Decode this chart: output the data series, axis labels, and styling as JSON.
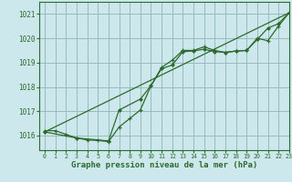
{
  "title": "Graphe pression niveau de la mer (hPa)",
  "background_color": "#cce8ec",
  "grid_color": "#99bbbb",
  "line_color": "#2d6a2d",
  "xlim": [
    -0.5,
    23
  ],
  "ylim": [
    1015.4,
    1021.5
  ],
  "yticks": [
    1016,
    1017,
    1018,
    1019,
    1020,
    1021
  ],
  "xticks": [
    0,
    1,
    2,
    3,
    4,
    5,
    6,
    7,
    8,
    9,
    10,
    11,
    12,
    13,
    14,
    15,
    16,
    17,
    18,
    19,
    20,
    21,
    22,
    23
  ],
  "series1_x": [
    0,
    1,
    2,
    3,
    4,
    5,
    6,
    7,
    8,
    9,
    10,
    11,
    12,
    13,
    14,
    15,
    16,
    17,
    18,
    19,
    20,
    21,
    22,
    23
  ],
  "series1_y": [
    1016.2,
    1016.2,
    1016.05,
    1015.9,
    1015.82,
    1015.8,
    1015.75,
    1016.35,
    1016.7,
    1017.05,
    1018.05,
    1018.8,
    1019.1,
    1019.5,
    1019.5,
    1019.65,
    1019.5,
    1019.42,
    1019.48,
    1019.5,
    1020.0,
    1019.9,
    1020.5,
    1021.05
  ],
  "series2_x": [
    0,
    3,
    6,
    7,
    9,
    10,
    11,
    12,
    13,
    14,
    15,
    16,
    17,
    18,
    19,
    20,
    21,
    22,
    23
  ],
  "series2_y": [
    1016.15,
    1015.9,
    1015.78,
    1017.05,
    1017.5,
    1018.05,
    1018.75,
    1018.9,
    1019.45,
    1019.48,
    1019.55,
    1019.45,
    1019.42,
    1019.47,
    1019.5,
    1019.95,
    1020.42,
    1020.6,
    1021.05
  ],
  "series3_x": [
    0,
    23
  ],
  "series3_y": [
    1016.15,
    1021.05
  ]
}
